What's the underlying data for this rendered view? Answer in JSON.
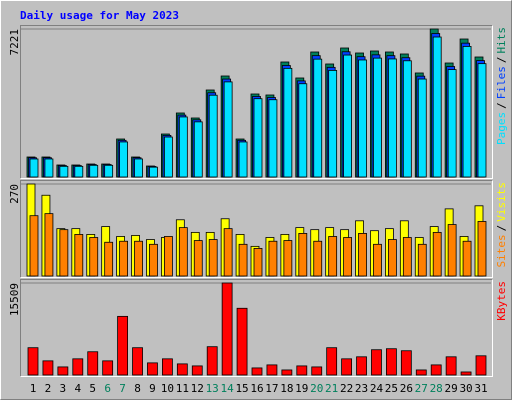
{
  "title": "Daily usage for May 2023",
  "chart_data": [
    {
      "type": "bar",
      "ylim": [
        0,
        7221
      ],
      "yticks": [
        7221
      ],
      "legend_separator": "/",
      "series": [
        {
          "name": "Hits",
          "color": "#00805c",
          "values": [
            976,
            976,
            586,
            586,
            634,
            634,
            1854,
            976,
            537,
            2098,
            3123,
            2879,
            4245,
            4928,
            1854,
            4050,
            4001,
            5611,
            4831,
            6099,
            5514,
            6294,
            6050,
            6148,
            6099,
            6002,
            5075,
            7221,
            5562,
            6733,
            5855
          ]
        },
        {
          "name": "Files",
          "color": "#0040ff",
          "values": [
            940,
            940,
            560,
            560,
            610,
            610,
            1790,
            940,
            515,
            2030,
            3020,
            2790,
            4110,
            4780,
            1790,
            3930,
            3880,
            5440,
            4690,
            5920,
            5350,
            6110,
            5870,
            5960,
            5920,
            5820,
            4920,
            7000,
            5390,
            6530,
            5680
          ]
        },
        {
          "name": "Pages",
          "color": "#00e0ff",
          "values": [
            880,
            880,
            520,
            520,
            570,
            570,
            1710,
            880,
            480,
            1950,
            2930,
            2690,
            3990,
            4640,
            1710,
            3820,
            3770,
            5300,
            4550,
            5750,
            5200,
            5950,
            5710,
            5800,
            5760,
            5670,
            4780,
            6830,
            5240,
            6370,
            5530
          ]
        }
      ]
    },
    {
      "type": "bar",
      "ylim": [
        0,
        270
      ],
      "yticks": [
        270
      ],
      "legend_separator": "/",
      "series": [
        {
          "name": "Visits",
          "color": "#ffff00",
          "values": [
            270,
            237,
            139,
            139,
            122,
            145,
            116,
            119,
            107,
            113,
            165,
            128,
            128,
            168,
            122,
            87,
            113,
            122,
            142,
            136,
            142,
            136,
            162,
            133,
            139,
            162,
            113,
            145,
            197,
            116,
            206
          ]
        },
        {
          "name": "Sites",
          "color": "#ff8000",
          "values": [
            177,
            183,
            136,
            122,
            113,
            99,
            102,
            102,
            93,
            116,
            142,
            104,
            107,
            139,
            93,
            81,
            102,
            104,
            125,
            102,
            116,
            113,
            125,
            93,
            107,
            113,
            93,
            128,
            151,
            102,
            160
          ]
        }
      ]
    },
    {
      "type": "bar",
      "ylim": [
        0,
        15509
      ],
      "yticks": [
        15509
      ],
      "series": [
        {
          "name": "KBytes",
          "color": "#ff0000",
          "values": [
            4602,
            2386,
            1363,
            2727,
            3920,
            2386,
            9885,
            4602,
            2045,
            2727,
            1875,
            1534,
            4772,
            15509,
            11248,
            1193,
            1704,
            852,
            1534,
            1363,
            4602,
            2727,
            3068,
            4261,
            4431,
            4090,
            852,
            1704,
            3068,
            511,
            3238
          ]
        }
      ],
      "categories": [
        "1",
        "2",
        "3",
        "4",
        "5",
        "6",
        "7",
        "8",
        "9",
        "10",
        "11",
        "12",
        "13",
        "14",
        "15",
        "16",
        "17",
        "18",
        "19",
        "20",
        "21",
        "22",
        "23",
        "24",
        "25",
        "26",
        "27",
        "28",
        "29",
        "30",
        "31"
      ],
      "category_colors": [
        "#000000",
        "#000000",
        "#000000",
        "#000000",
        "#000000",
        "#00805c",
        "#00805c",
        "#000000",
        "#000000",
        "#000000",
        "#000000",
        "#000000",
        "#00805c",
        "#00805c",
        "#000000",
        "#000000",
        "#000000",
        "#000000",
        "#000000",
        "#00805c",
        "#00805c",
        "#000000",
        "#000000",
        "#000000",
        "#000000",
        "#000000",
        "#00805c",
        "#00805c",
        "#000000",
        "#000000",
        "#000000"
      ]
    }
  ]
}
